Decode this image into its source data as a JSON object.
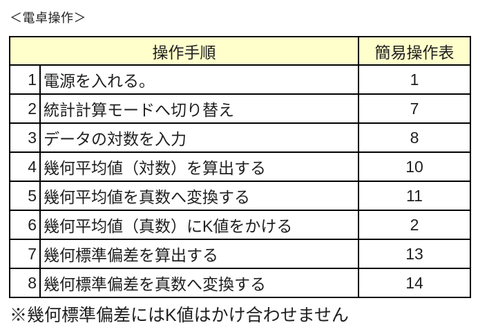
{
  "title": "＜電卓操作＞",
  "table": {
    "header": {
      "procedure": "操作手順",
      "quick_ref": "簡易操作表"
    },
    "rows": [
      {
        "no": "1",
        "step": "電源を入れる。",
        "ref": "1"
      },
      {
        "no": "2",
        "step": "統計計算モードへ切り替え",
        "ref": "7"
      },
      {
        "no": "3",
        "step": "データの対数を入力",
        "ref": "8"
      },
      {
        "no": "4",
        "step": "幾何平均値（対数）を算出する",
        "ref": "10"
      },
      {
        "no": "5",
        "step": "幾何平均値を真数へ変換する",
        "ref": "11"
      },
      {
        "no": "6",
        "step": "幾何平均値（真数）にK値をかける",
        "ref": "2"
      },
      {
        "no": "7",
        "step": "幾何標準偏差を算出する",
        "ref": "13"
      },
      {
        "no": "8",
        "step": "幾何標準偏差を真数へ変換する",
        "ref": "14"
      }
    ]
  },
  "note": "※幾何標準偏差にはK値はかけ合わせません",
  "colors": {
    "page_bg": "#FFFFFF",
    "header_bg": "#FFFFCC",
    "border": "#000000",
    "text": "#1F1F1F"
  }
}
